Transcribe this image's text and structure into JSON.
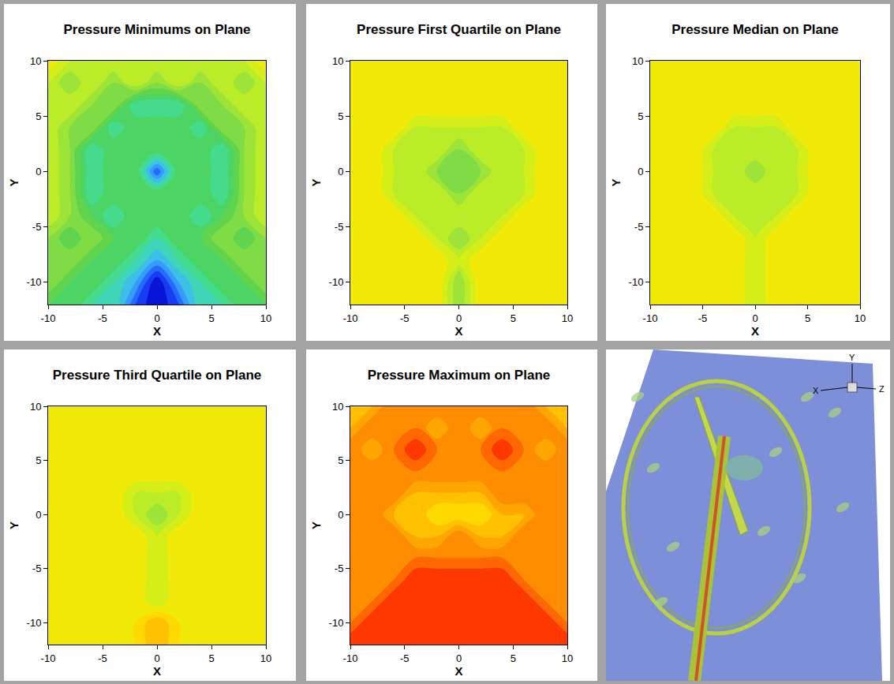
{
  "chart_data": [
    {
      "type": "contour",
      "title": "Pressure Minimums on Plane",
      "xlabel": "X",
      "ylabel": "Y",
      "xlim": [
        -10,
        10
      ],
      "ylim": [
        -12,
        10
      ],
      "xticks": [
        -10,
        -5,
        0,
        5,
        10
      ],
      "yticks": [
        -10,
        -5,
        0,
        5,
        10
      ],
      "zlim": [
        0,
        10
      ],
      "x": [
        -10,
        -8,
        -6,
        -4,
        -2,
        0,
        2,
        4,
        6,
        8,
        10
      ],
      "y": [
        -12,
        -10,
        -8,
        -6,
        -4,
        -2,
        0,
        2,
        4,
        6,
        8,
        10
      ],
      "z": [
        [
          4,
          4,
          3,
          3,
          1,
          0,
          1,
          3,
          3,
          4,
          4
        ],
        [
          5,
          4,
          4,
          3,
          2,
          0,
          2,
          3,
          4,
          4,
          5
        ],
        [
          5,
          5,
          4,
          4,
          3,
          2,
          3,
          4,
          4,
          5,
          5
        ],
        [
          5,
          4,
          5,
          4,
          4,
          3,
          4,
          4,
          5,
          4,
          5
        ],
        [
          6,
          5,
          4,
          3,
          4,
          4,
          4,
          3,
          4,
          5,
          6
        ],
        [
          6,
          5,
          3,
          4,
          4,
          4,
          4,
          4,
          3,
          5,
          6
        ],
        [
          6,
          5,
          3,
          4,
          4,
          1,
          4,
          4,
          3,
          5,
          6
        ],
        [
          6,
          5,
          3,
          4,
          4,
          4,
          4,
          4,
          3,
          5,
          6
        ],
        [
          6,
          5,
          5,
          3,
          4,
          4,
          4,
          3,
          5,
          5,
          6
        ],
        [
          6,
          6,
          5,
          5,
          3,
          3,
          3,
          5,
          5,
          6,
          6
        ],
        [
          6,
          5,
          6,
          5,
          6,
          5,
          6,
          5,
          6,
          5,
          6
        ],
        [
          7,
          6,
          6,
          6,
          6,
          6,
          6,
          6,
          6,
          6,
          7
        ]
      ]
    },
    {
      "type": "contour",
      "title": "Pressure First Quartile on Plane",
      "xlabel": "X",
      "ylabel": "Y",
      "xlim": [
        -10,
        10
      ],
      "ylim": [
        -12,
        10
      ],
      "xticks": [
        -10,
        -5,
        0,
        5,
        10
      ],
      "yticks": [
        -10,
        -5,
        0,
        5,
        10
      ],
      "zlim": [
        0,
        10
      ],
      "x": [
        -10,
        -8,
        -6,
        -4,
        -2,
        0,
        2,
        4,
        6,
        8,
        10
      ],
      "y": [
        -12,
        -10,
        -8,
        -6,
        -4,
        -2,
        0,
        2,
        4,
        6,
        8,
        10
      ],
      "z": [
        [
          7,
          7,
          7,
          7,
          7,
          5,
          7,
          7,
          7,
          7,
          7
        ],
        [
          7,
          7,
          7,
          7,
          7,
          5,
          7,
          7,
          7,
          7,
          7
        ],
        [
          7,
          7,
          7,
          7,
          7,
          6,
          7,
          7,
          7,
          7,
          7
        ],
        [
          7,
          7,
          7,
          7,
          6,
          5,
          6,
          7,
          7,
          7,
          7
        ],
        [
          7,
          7,
          7,
          6,
          6,
          6,
          6,
          6,
          7,
          7,
          7
        ],
        [
          7,
          7,
          6,
          6,
          6,
          5,
          6,
          6,
          6,
          7,
          7
        ],
        [
          7,
          7,
          6,
          6,
          5,
          5,
          5,
          6,
          6,
          7,
          7
        ],
        [
          7,
          7,
          6,
          6,
          6,
          5,
          6,
          6,
          6,
          7,
          7
        ],
        [
          7,
          7,
          7,
          6,
          6,
          6,
          6,
          6,
          7,
          7,
          7
        ],
        [
          7,
          7,
          7,
          7,
          7,
          7,
          7,
          7,
          7,
          7,
          7
        ],
        [
          7,
          7,
          7,
          7,
          7,
          7,
          7,
          7,
          7,
          7,
          7
        ],
        [
          7,
          7,
          7,
          7,
          7,
          7,
          7,
          7,
          7,
          7,
          7
        ]
      ]
    },
    {
      "type": "contour",
      "title": "Pressure Median on Plane",
      "xlabel": "X",
      "ylabel": "Y",
      "xlim": [
        -10,
        10
      ],
      "ylim": [
        -12,
        10
      ],
      "xticks": [
        -10,
        -5,
        0,
        5,
        10
      ],
      "yticks": [
        -10,
        -5,
        0,
        5,
        10
      ],
      "zlim": [
        0,
        10
      ],
      "x": [
        -10,
        -8,
        -6,
        -4,
        -2,
        0,
        2,
        4,
        6,
        8,
        10
      ],
      "y": [
        -12,
        -10,
        -8,
        -6,
        -4,
        -2,
        0,
        2,
        4,
        6,
        8,
        10
      ],
      "z": [
        [
          7,
          7,
          7,
          7,
          7,
          6,
          7,
          7,
          7,
          7,
          7
        ],
        [
          7,
          7,
          7,
          7,
          7,
          6,
          7,
          7,
          7,
          7,
          7
        ],
        [
          7,
          7,
          7,
          7,
          7,
          6,
          7,
          7,
          7,
          7,
          7
        ],
        [
          7,
          7,
          7,
          7,
          7,
          6,
          7,
          7,
          7,
          7,
          7
        ],
        [
          7,
          7,
          7,
          7,
          6,
          6,
          6,
          7,
          7,
          7,
          7
        ],
        [
          7,
          7,
          7,
          6,
          6,
          6,
          6,
          6,
          7,
          7,
          7
        ],
        [
          7,
          7,
          7,
          6,
          6,
          5,
          6,
          6,
          7,
          7,
          7
        ],
        [
          7,
          7,
          7,
          6,
          6,
          6,
          6,
          6,
          7,
          7,
          7
        ],
        [
          7,
          7,
          7,
          7,
          6,
          6,
          6,
          7,
          7,
          7,
          7
        ],
        [
          7,
          7,
          7,
          7,
          7,
          7,
          7,
          7,
          7,
          7,
          7
        ],
        [
          7,
          7,
          7,
          7,
          7,
          7,
          7,
          7,
          7,
          7,
          7
        ],
        [
          7,
          7,
          7,
          7,
          7,
          7,
          7,
          7,
          7,
          7,
          7
        ]
      ]
    },
    {
      "type": "contour",
      "title": "Pressure Third Quartile on Plane",
      "xlabel": "X",
      "ylabel": "Y",
      "xlim": [
        -10,
        10
      ],
      "ylim": [
        -12,
        10
      ],
      "xticks": [
        -10,
        -5,
        0,
        5,
        10
      ],
      "yticks": [
        -10,
        -5,
        0,
        5,
        10
      ],
      "zlim": [
        0,
        10
      ],
      "x": [
        -10,
        -8,
        -6,
        -4,
        -2,
        0,
        2,
        4,
        6,
        8,
        10
      ],
      "y": [
        -12,
        -10,
        -8,
        -6,
        -4,
        -2,
        0,
        2,
        4,
        6,
        8,
        10
      ],
      "z": [
        [
          7,
          7,
          7,
          7,
          7,
          8,
          7,
          7,
          7,
          7,
          7
        ],
        [
          7,
          7,
          7,
          7,
          7,
          8,
          7,
          7,
          7,
          7,
          7
        ],
        [
          7,
          7,
          7,
          7,
          7,
          6,
          7,
          7,
          7,
          7,
          7
        ],
        [
          7,
          7,
          7,
          7,
          7,
          6,
          7,
          7,
          7,
          7,
          7
        ],
        [
          7,
          7,
          7,
          7,
          7,
          6,
          7,
          7,
          7,
          7,
          7
        ],
        [
          7,
          7,
          7,
          7,
          7,
          6,
          7,
          7,
          7,
          7,
          7
        ],
        [
          7,
          7,
          7,
          7,
          6,
          5,
          6,
          7,
          7,
          7,
          7
        ],
        [
          7,
          7,
          7,
          7,
          6,
          6,
          6,
          7,
          7,
          7,
          7
        ],
        [
          7,
          7,
          7,
          7,
          7,
          7,
          7,
          7,
          7,
          7,
          7
        ],
        [
          7,
          7,
          7,
          7,
          7,
          7,
          7,
          7,
          7,
          7,
          7
        ],
        [
          7,
          7,
          7,
          7,
          7,
          7,
          7,
          7,
          7,
          7,
          7
        ],
        [
          7,
          7,
          7,
          7,
          7,
          7,
          7,
          7,
          7,
          7,
          7
        ]
      ]
    },
    {
      "type": "contour",
      "title": "Pressure Maximum on Plane",
      "xlabel": "X",
      "ylabel": "Y",
      "xlim": [
        -10,
        10
      ],
      "ylim": [
        -12,
        10
      ],
      "xticks": [
        -10,
        -5,
        0,
        5,
        10
      ],
      "yticks": [
        -10,
        -5,
        0,
        5,
        10
      ],
      "zlim": [
        0,
        10
      ],
      "x": [
        -10,
        -8,
        -6,
        -4,
        -2,
        0,
        2,
        4,
        6,
        8,
        10
      ],
      "y": [
        -12,
        -10,
        -8,
        -6,
        -4,
        -2,
        0,
        2,
        4,
        6,
        8,
        10
      ],
      "z": [
        [
          10,
          10,
          10,
          10,
          10,
          10,
          10,
          10,
          10,
          10,
          10
        ],
        [
          9,
          10,
          10,
          10,
          10,
          10,
          10,
          10,
          10,
          10,
          9
        ],
        [
          9,
          9,
          10,
          10,
          10,
          10,
          10,
          10,
          10,
          9,
          9
        ],
        [
          9,
          9,
          9,
          10,
          10,
          10,
          10,
          10,
          9,
          9,
          9
        ],
        [
          9,
          9,
          9,
          9,
          9,
          9,
          9,
          9,
          9,
          9,
          9
        ],
        [
          9,
          9,
          9,
          8,
          8,
          9,
          8,
          8,
          9,
          9,
          9
        ],
        [
          9,
          9,
          8,
          8,
          7,
          7,
          7,
          8,
          8,
          9,
          9
        ],
        [
          9,
          9,
          9,
          8,
          8,
          8,
          8,
          9,
          9,
          9,
          9
        ],
        [
          9,
          9,
          9,
          9,
          9,
          9,
          9,
          9,
          9,
          9,
          9
        ],
        [
          9,
          8,
          9,
          10,
          9,
          9,
          9,
          10,
          9,
          8,
          9
        ],
        [
          8,
          9,
          9,
          9,
          8,
          9,
          8,
          9,
          9,
          9,
          8
        ],
        [
          8,
          8,
          9,
          9,
          9,
          9,
          9,
          9,
          9,
          8,
          8
        ]
      ]
    }
  ],
  "render": {
    "axis_labels": [
      "X",
      "Y",
      "Z"
    ]
  }
}
